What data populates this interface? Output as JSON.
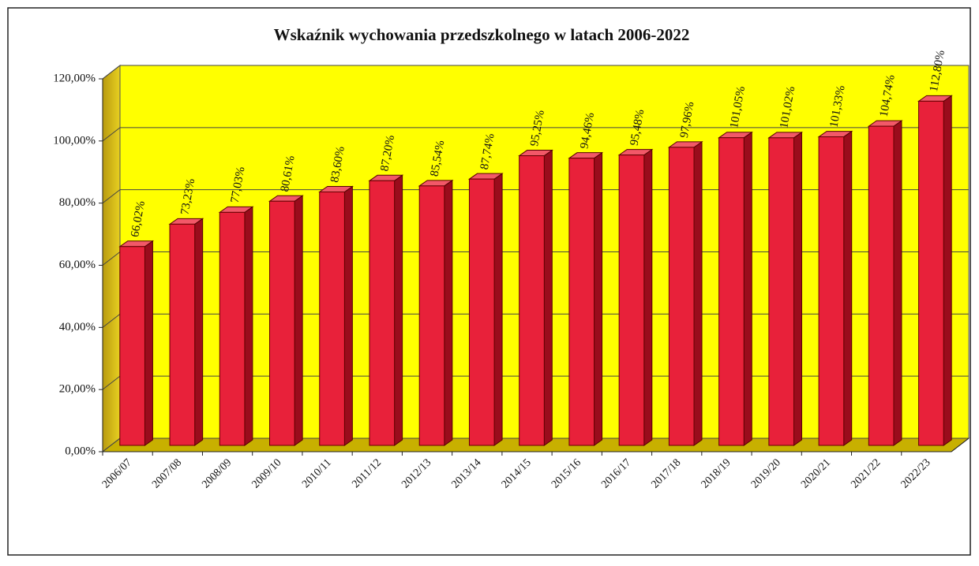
{
  "chart_data": {
    "type": "bar3d",
    "title": "Wskaźnik wychowania przedszkolnego w latach 2006-2022",
    "categories": [
      "2006/07",
      "2007/08",
      "2008/09",
      "2009/10",
      "2010/11",
      "2011/12",
      "2012/13",
      "2013/14",
      "2014/15",
      "2015/16",
      "2016/17",
      "2017/18",
      "2018/19",
      "2019/20",
      "2020/21",
      "2021/22",
      "2022/23"
    ],
    "values": [
      66.02,
      73.23,
      77.03,
      80.61,
      83.6,
      87.2,
      85.54,
      87.74,
      95.25,
      94.46,
      95.48,
      97.96,
      101.05,
      101.02,
      101.33,
      104.74,
      112.8
    ],
    "value_labels": [
      "66,02%",
      "73,23%",
      "77,03%",
      "80,61%",
      "83,60%",
      "87,20%",
      "85,54%",
      "87,74%",
      "95,25%",
      "94,46%",
      "95,48%",
      "97,96%",
      "101,05%",
      "101,02%",
      "101,33%",
      "104,74%",
      "112,80%"
    ],
    "color": "#e8213a",
    "background": "#ffff00",
    "ylim": [
      0,
      120
    ],
    "yticks": [
      {
        "value": 0,
        "label": "0,00%"
      },
      {
        "value": 20,
        "label": "20,00%"
      },
      {
        "value": 40,
        "label": "40,00%"
      },
      {
        "value": 60,
        "label": "60,00%"
      },
      {
        "value": 80,
        "label": "80,00%"
      },
      {
        "value": 100,
        "label": "100,00%"
      },
      {
        "value": 120,
        "label": "120,00%"
      }
    ],
    "grid": true
  }
}
